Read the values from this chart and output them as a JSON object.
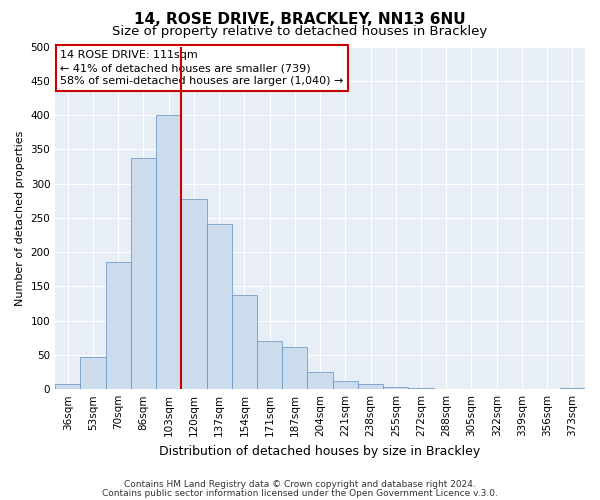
{
  "title": "14, ROSE DRIVE, BRACKLEY, NN13 6NU",
  "subtitle": "Size of property relative to detached houses in Brackley",
  "xlabel": "Distribution of detached houses by size in Brackley",
  "ylabel": "Number of detached properties",
  "bar_labels": [
    "36sqm",
    "53sqm",
    "70sqm",
    "86sqm",
    "103sqm",
    "120sqm",
    "137sqm",
    "154sqm",
    "171sqm",
    "187sqm",
    "204sqm",
    "221sqm",
    "238sqm",
    "255sqm",
    "272sqm",
    "288sqm",
    "305sqm",
    "322sqm",
    "339sqm",
    "356sqm",
    "373sqm"
  ],
  "bar_values": [
    8,
    47,
    185,
    337,
    400,
    277,
    241,
    137,
    70,
    62,
    25,
    12,
    8,
    3,
    2,
    0,
    0,
    0,
    0,
    0,
    2
  ],
  "bar_color": "#ccdcec",
  "bar_edge_color": "#6090c0",
  "bar_edge_width": 0.5,
  "vline_color": "#cc0000",
  "vline_x": 4.5,
  "ylim": [
    0,
    500
  ],
  "yticks": [
    0,
    50,
    100,
    150,
    200,
    250,
    300,
    350,
    400,
    450,
    500
  ],
  "annotation_title": "14 ROSE DRIVE: 111sqm",
  "annotation_line1": "← 41% of detached houses are smaller (739)",
  "annotation_line2": "58% of semi-detached houses are larger (1,040) →",
  "annotation_box_facecolor": "#ffffff",
  "annotation_box_edgecolor": "#cc0000",
  "footnote1": "Contains HM Land Registry data © Crown copyright and database right 2024.",
  "footnote2": "Contains public sector information licensed under the Open Government Licence v.3.0.",
  "bg_color": "#ffffff",
  "plot_bg_color": "#e8eef5",
  "grid_color": "#ffffff",
  "title_fontsize": 11,
  "subtitle_fontsize": 9.5,
  "axis_label_fontsize": 9,
  "tick_fontsize": 7.5,
  "ylabel_fontsize": 8,
  "footnote_fontsize": 6.5,
  "annotation_fontsize": 8
}
